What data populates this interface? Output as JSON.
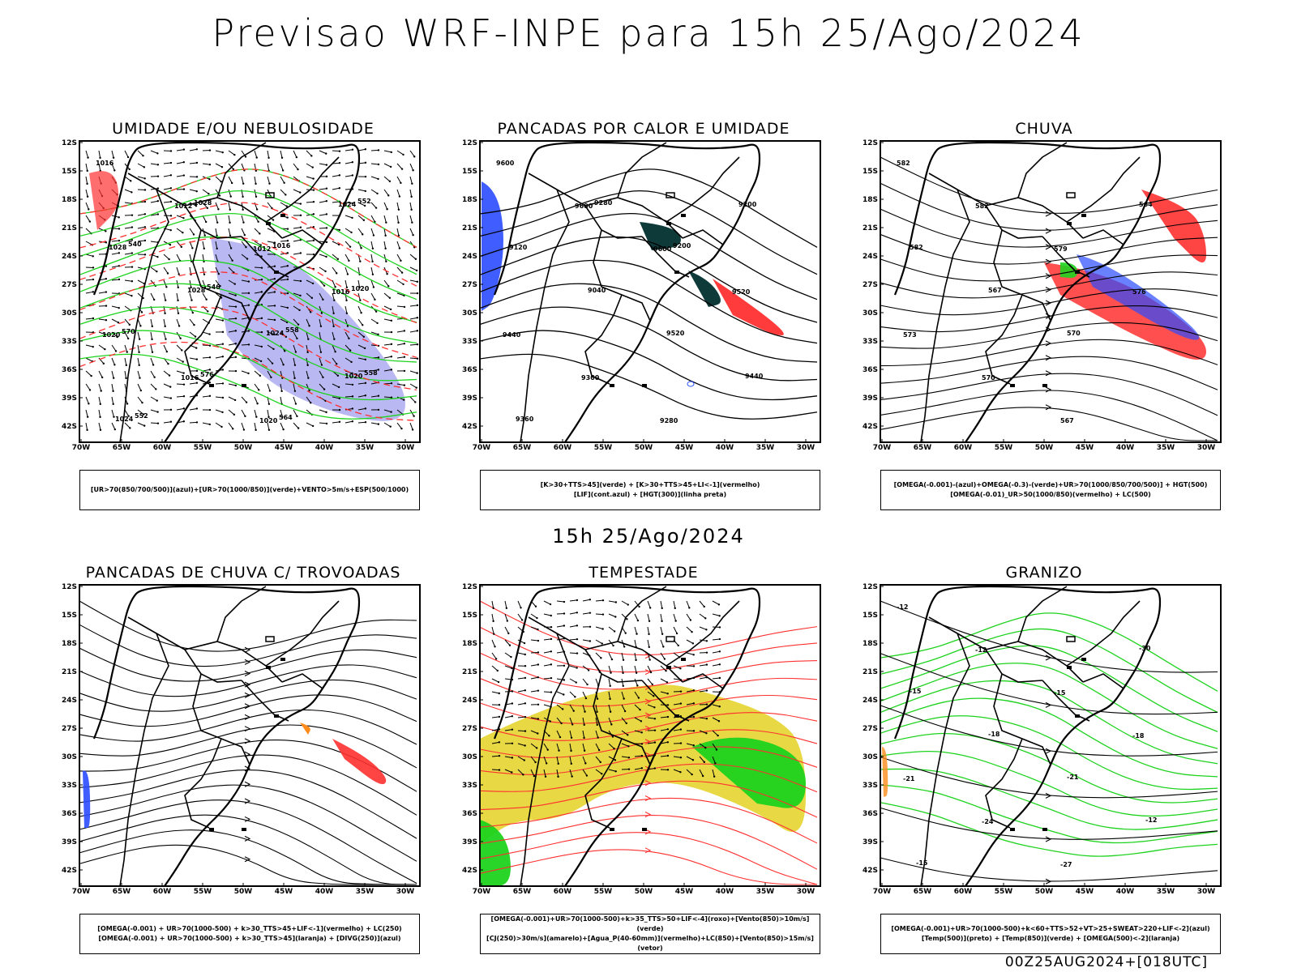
{
  "title": "Previsao WRF-INPE  para 15h 25/Ago/2024",
  "middle_time": "15h 25/Ago/2024",
  "run": "00Z25AUG2024+[018UTC]",
  "lat_labels": [
    "12S",
    "15S",
    "18S",
    "21S",
    "24S",
    "27S",
    "30S",
    "33S",
    "36S",
    "39S",
    "42S"
  ],
  "lon_labels": [
    "70W",
    "65W",
    "60W",
    "55W",
    "50W",
    "45W",
    "40W",
    "35W",
    "30W"
  ],
  "colors": {
    "blue": "#2b4cff",
    "green": "#1ed31e",
    "red": "#ff3030",
    "lavender": "#a9a6ef",
    "yellow": "#e6d63a",
    "darkgreen": "#0f3a3a",
    "orange": "#ff8c1a"
  },
  "panels": [
    {
      "title": "UMIDADE E/OU NEBULOSIDADE",
      "legend": [
        "[UR>70(850/700/500)](azul)+[UR>70(1000/850)](verde)+VENTO>5m/s+ESP(500/1000)"
      ],
      "labels": [
        "1016",
        "1012",
        "1012",
        "1016",
        "1020",
        "1016",
        "1020",
        "1024",
        "1028",
        "1028",
        "1024",
        "1020",
        "1024",
        "1028",
        "1016",
        "1020",
        "570",
        "576",
        "564",
        "552",
        "540",
        "546",
        "558",
        "558",
        "552"
      ]
    },
    {
      "title": "PANCADAS POR CALOR E UMIDADE",
      "legend": [
        "[K>30+TTS>45](verde) + [K>30+TTS>45+LI<-1](vermelho)",
        "[LIF](cont.azul) + [HGT(300)](linha preta)"
      ],
      "labels": [
        "9600",
        "9600",
        "9600",
        "9520",
        "9440",
        "9360",
        "9280",
        "9200",
        "9120",
        "9040",
        "9520",
        "9440",
        "9360",
        "9280",
        "9200"
      ]
    },
    {
      "title": "CHUVA",
      "legend": [
        "[OMEGA(-0.001)-(azul)+OMEGA(-0.3)-(verde)+UR>70(1000/850/700/500)] + HGT(500)",
        "[OMEGA(-0.01)_UR>50(1000/850)(vermelho) + LC(500)"
      ],
      "labels": [
        "582",
        "582",
        "579",
        "576",
        "573",
        "570",
        "567",
        "564",
        "582",
        "567",
        "570"
      ]
    },
    {
      "title": "PANCADAS DE CHUVA C/ TROVOADAS",
      "legend": [
        "[OMEGA(-0.001) + UR>70(1000-500) + k>30_TTS>45+LIF<-1](vermelho) + LC(250)",
        "[OMEGA(-0.001) + UR>70(1000-500) + k>30_TTS>45](laranja) + [DIVG(250)](azul)"
      ],
      "labels": []
    },
    {
      "title": "TEMPESTADE",
      "legend": [
        "[OMEGA(-0.001)+UR>70(1000-500)+k>35_TTS>50+LIF<-4](roxo)+[Vento(850)>10m/s](verde)",
        "[CJ(250)>30m/s](amarelo)+[Agua_P(40-60mm)](vermelho)+LC(850)+[Vento(850)>15m/s](vetor)"
      ],
      "labels": []
    },
    {
      "title": "GRANIZO",
      "legend": [
        "[OMEGA(-0.001)+UR>70(1000-500)+k<60+TTS>52+VT>25+SWEAT>220+LIF<-2](azul)",
        "[Temp(500)](preto) + [Temp(850)](verde) + [OMEGA(500)<-2](laranja)"
      ],
      "labels": [
        "-12",
        "-12",
        "-15",
        "-18",
        "-21",
        "-24",
        "-27",
        "-30",
        "-15",
        "-18",
        "-21",
        "-12",
        "-15"
      ]
    }
  ]
}
